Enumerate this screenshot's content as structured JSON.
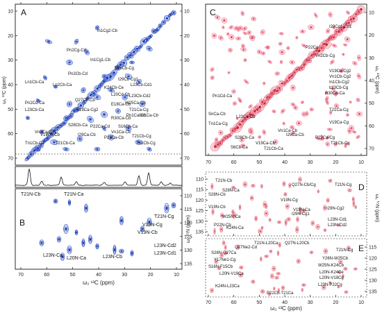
{
  "panels": {
    "A": {
      "label": "A"
    },
    "B": {
      "label": "B"
    },
    "C": {
      "label": "C"
    },
    "D": {
      "label": "D"
    },
    "E": {
      "label": "E"
    }
  },
  "axes": {
    "c_ticks_x": [
      "70",
      "60",
      "50",
      "40",
      "30",
      "20",
      "10"
    ],
    "c_ticks_y": [
      "10",
      "20",
      "30",
      "40",
      "50",
      "60",
      "70"
    ],
    "n_ticks_y": [
      "110",
      "115",
      "120",
      "125",
      "130",
      "135"
    ],
    "n_ticks_y_d": [
      "110",
      "115",
      "120",
      "125",
      "130",
      "135"
    ],
    "n_ticks_y_e": [
      "115",
      "120",
      "125",
      "130",
      "135"
    ],
    "xlabel_left": "ω₂ ¹³C (ppm)",
    "xlabel_right": "ω₂ ¹³C (ppm)",
    "ylabel_c": "ω₁ ¹³C (ppm)",
    "ylabel_n": "ω₁ ¹⁵N (ppm)"
  },
  "annotations_A": [
    "In1Cg2-Cb",
    "Pn2Cg-Cd",
    "In1Cg1-Cb",
    "Pn2Cb-Cd",
    "V19Cb-Cg",
    "Ln1Cb-Ca",
    "Ln2Cb-Ca",
    "I29Cb-Cg1",
    "Pn2Cd-Ca",
    "K24Cb-Ce",
    "L23Cb-Cd1",
    "L23Cb-Ca",
    "L20Cd-Cb",
    "L23Cb-Cd2",
    "W25Ca-Cb",
    "E18Ca-Cb",
    "Q27Cb-Cb",
    "T21Ca-Cg",
    "Pn1Ca-Cb",
    "V19Ca-Cg2",
    "R30Ca-Cb",
    "Vn1Ca-Cg1",
    "Sn1Ca-Cb",
    "V19Ca-Cb",
    "I29Ca-Cb",
    "S16Cb-Ca",
    "S28Cb-Ca",
    "P22Ca-Cd",
    "Vn1Ca-Cb",
    "P22Ca-Cb",
    "T21Cb-Cg",
    "Tn1Cb-Ca",
    "T21Cb-Ca",
    "Tn1Cb-Cg"
  ],
  "annotations_B": [
    "T21N-Cb",
    "T21N-Ca",
    "V19N-Cg",
    "T21N-Cg",
    "V19N-Cb",
    "L23N-Cd2",
    "L23N-Cd1",
    "L20N-Ca",
    "L23N-Cb",
    "L23N-Ca"
  ],
  "annotations_C": [
    "I29Cg1-Cd1",
    "P22Cg",
    "Vn2Cb-Cg",
    "V19Cb-Cg2",
    "Vn1Cb-Cg2",
    "In1Cb-Cg2",
    "Pn1Cd-Ca",
    "L23Cb-Cg",
    "R30Cb-Ca",
    "T21Ca-Cg",
    "SnCa-Cb",
    "L23Ca-Cb",
    "V19Ca-Cg",
    "Tn1Ca-Cg",
    "S6Cb-Ca",
    "S28Cb-Ca",
    "V19Ca-Cb",
    "Vn1Ca-Cb",
    "I29Ca-Cb",
    "T21Cb-Ca",
    "P22Ca-Cg",
    "T21Cb-Cg"
  ],
  "annotations_D": [
    "T21N-Cb",
    "T21N-Cg",
    "Q27N-Cb/Cg",
    "S28N-Cb",
    "S28N-Ca",
    "V19N-Cb",
    "V19N-Cg",
    "V19N-Ca",
    "W25N-Ca",
    "I29N-Cg1",
    "I29N-Cg2",
    "P22N-Cb",
    "L23N-Cd1",
    "L23N-Cd2",
    "K24N-Ca"
  ],
  "annotations_E": [
    "T21N-L20Ca",
    "Q27N-L20Cb",
    "Q27Ne2-Cd",
    "S28N-Q27Ca",
    "Y17Ne1-Cg",
    "S16N-F15Cb",
    "L20N-V19Ca",
    "T21N-Cg",
    "Y26N-W25Cb",
    "W25N-K24Cb",
    "L20N-K24Ce",
    "L20N-V19Cg",
    "L23N-P22Cg",
    "K24N-L23Ca",
    "P22Cb-T21Ca"
  ]
}
